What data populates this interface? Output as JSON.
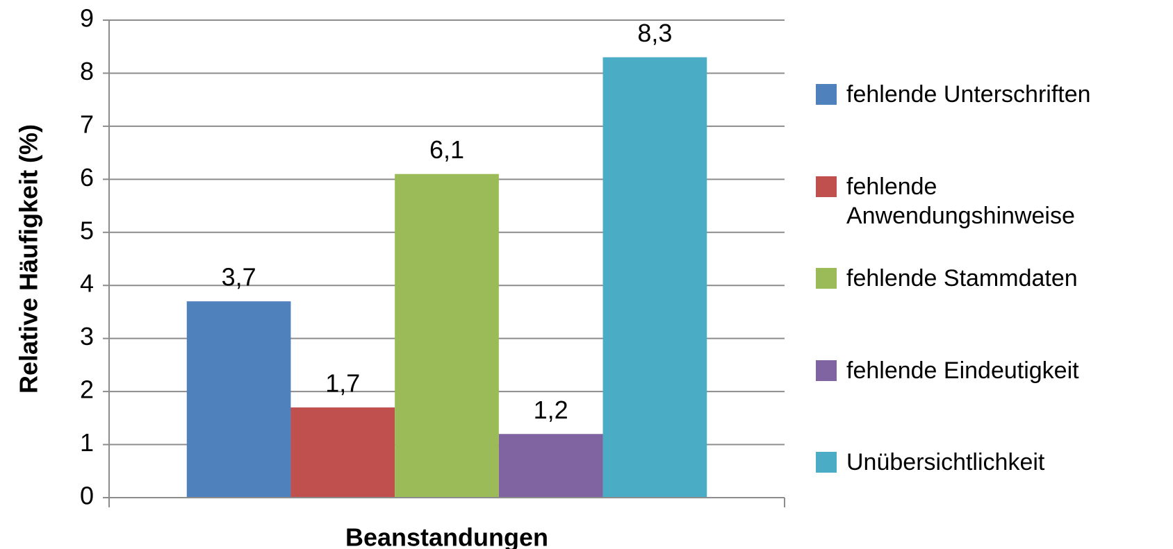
{
  "chart_data": {
    "type": "bar",
    "y_label": "Relative Häufigkeit (%)",
    "categories": [
      "Beanstandungen"
    ],
    "series": [
      {
        "name": "fehlende Unterschriften",
        "color": "#4f81bd",
        "values": [
          3.7
        ],
        "value_labels": [
          "3,7"
        ]
      },
      {
        "name": "fehlende Anwendungshinweise",
        "color": "#c0504d",
        "values": [
          1.7
        ],
        "value_labels": [
          "1,7"
        ]
      },
      {
        "name": "fehlende Stammdaten",
        "color": "#9bbb59",
        "values": [
          6.1
        ],
        "value_labels": [
          "6,1"
        ]
      },
      {
        "name": "fehlende Eindeutigkeit",
        "color": "#8064a2",
        "values": [
          1.2
        ],
        "value_labels": [
          "1,2"
        ]
      },
      {
        "name": "Unübersichtlichkeit",
        "color": "#4bacc6",
        "values": [
          8.3
        ],
        "value_labels": [
          "8,3"
        ]
      }
    ],
    "ylim": [
      0,
      9
    ],
    "yticks": [
      0,
      1,
      2,
      3,
      4,
      5,
      6,
      7,
      8,
      9
    ],
    "grid": true,
    "legend": "right"
  }
}
